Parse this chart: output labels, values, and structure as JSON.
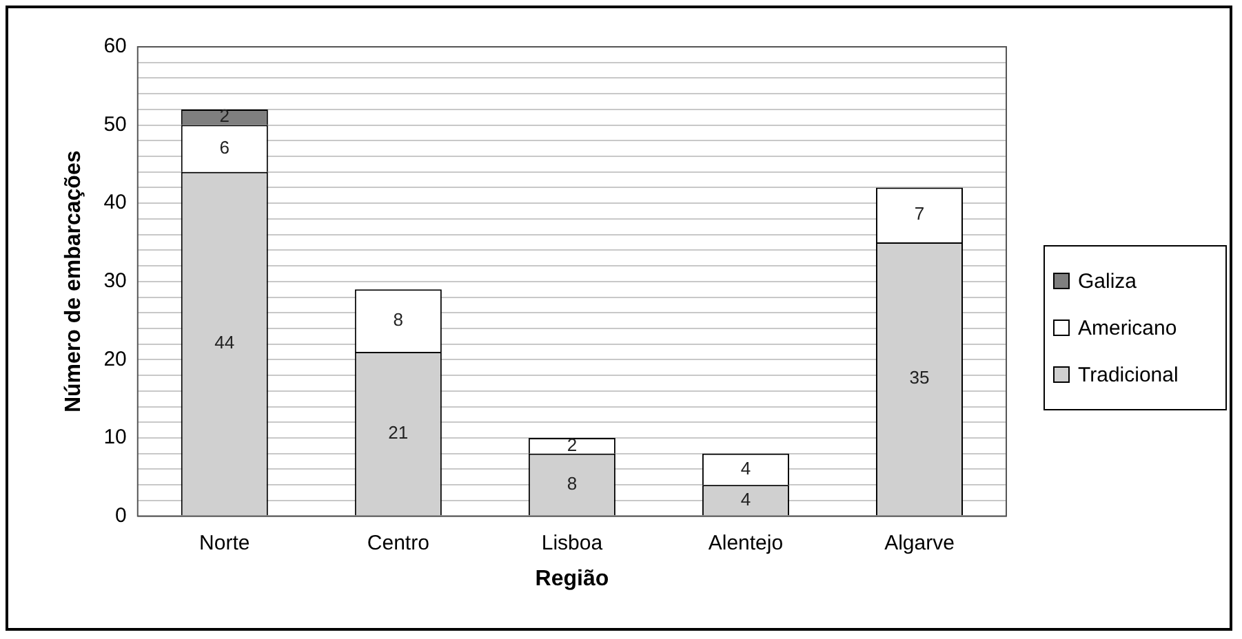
{
  "chart_data": {
    "type": "bar",
    "stacked": true,
    "xlabel": "Região",
    "ylabel": "Número de embarcações",
    "categories": [
      "Norte",
      "Centro",
      "Lisboa",
      "Alentejo",
      "Algarve"
    ],
    "series": [
      {
        "name": "Tradicional",
        "color": "#d0d0d0",
        "values": [
          44,
          21,
          8,
          4,
          35
        ]
      },
      {
        "name": "Americano",
        "color": "#ffffff",
        "values": [
          6,
          8,
          2,
          4,
          7
        ]
      },
      {
        "name": "Galiza",
        "color": "#7f7f7f",
        "values": [
          2,
          null,
          null,
          null,
          null
        ]
      }
    ],
    "ylim": [
      0,
      60
    ],
    "yticks": [
      0,
      {
        "value": 2,
        "label": null
      },
      {
        "value": 4,
        "label": null
      },
      {
        "value": 6,
        "label": null
      },
      {
        "value": 8,
        "label": null
      },
      10,
      {
        "value": 12,
        "label": null
      },
      {
        "value": 14,
        "label": null
      },
      {
        "value": 16,
        "label": null
      },
      {
        "value": 18,
        "label": null
      },
      20,
      {
        "value": 22,
        "label": null
      },
      {
        "value": 24,
        "label": null
      },
      {
        "value": 26,
        "label": null
      },
      {
        "value": 28,
        "label": null
      },
      30,
      {
        "value": 32,
        "label": null
      },
      {
        "value": 34,
        "label": null
      },
      {
        "value": 36,
        "label": null
      },
      {
        "value": 38,
        "label": null
      },
      40,
      {
        "value": 42,
        "label": null
      },
      {
        "value": 44,
        "label": null
      },
      {
        "value": 46,
        "label": null
      },
      {
        "value": 48,
        "label": null
      },
      50,
      {
        "value": 52,
        "label": null
      },
      {
        "value": 54,
        "label": null
      },
      {
        "value": 56,
        "label": null
      },
      {
        "value": 58,
        "label": null
      },
      60
    ],
    "grid": "y",
    "legend": "right",
    "data_labels": true
  }
}
